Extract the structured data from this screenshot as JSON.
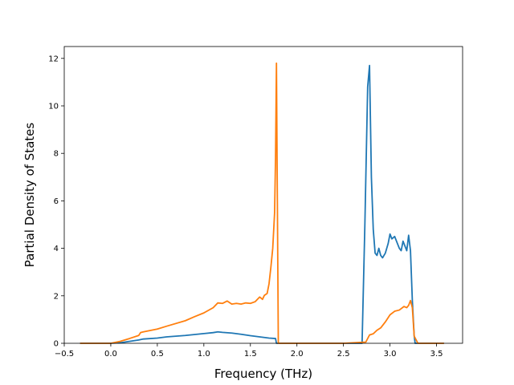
{
  "chart_data": {
    "type": "line",
    "title": "",
    "xlabel": "Frequency (THz)",
    "ylabel": "Partial Density of States",
    "xlim": [
      -0.5,
      3.78
    ],
    "ylim": [
      0,
      12.5
    ],
    "xticks": [
      -0.5,
      0.0,
      0.5,
      1.0,
      1.5,
      2.0,
      2.5,
      3.0,
      3.5
    ],
    "xtick_labels": [
      "−0.5",
      "0.0",
      "0.5",
      "1.0",
      "1.5",
      "2.0",
      "2.5",
      "3.0",
      "3.5"
    ],
    "yticks": [
      0,
      2,
      4,
      6,
      8,
      10,
      12
    ],
    "ytick_labels": [
      "0",
      "2",
      "4",
      "6",
      "8",
      "10",
      "12"
    ],
    "grid": false,
    "legend": "none",
    "series": [
      {
        "color": "#1f77b4",
        "x": [
          -0.33,
          0.0,
          0.1,
          0.2,
          0.3,
          0.35,
          0.5,
          0.6,
          0.8,
          1.0,
          1.1,
          1.15,
          1.2,
          1.3,
          1.4,
          1.5,
          1.6,
          1.7,
          1.77,
          1.78,
          1.85,
          2.0,
          2.5,
          2.7,
          2.73,
          2.76,
          2.78,
          2.8,
          2.82,
          2.84,
          2.86,
          2.88,
          2.9,
          2.92,
          2.95,
          2.98,
          3.0,
          3.02,
          3.05,
          3.08,
          3.1,
          3.12,
          3.14,
          3.16,
          3.18,
          3.2,
          3.22,
          3.24,
          3.26,
          3.27,
          3.3,
          3.58
        ],
        "y": [
          0,
          0,
          0.02,
          0.08,
          0.14,
          0.18,
          0.22,
          0.27,
          0.33,
          0.41,
          0.45,
          0.48,
          0.46,
          0.43,
          0.38,
          0.32,
          0.27,
          0.22,
          0.2,
          0,
          0,
          0,
          0,
          0,
          5.0,
          10.8,
          11.7,
          7.0,
          4.8,
          3.8,
          3.7,
          4.0,
          3.7,
          3.6,
          3.8,
          4.2,
          4.6,
          4.4,
          4.5,
          4.2,
          4.0,
          3.9,
          4.3,
          4.1,
          3.9,
          4.55,
          3.9,
          1.8,
          0.3,
          0,
          0,
          0
        ]
      },
      {
        "color": "#ff7f0e",
        "x": [
          -0.33,
          0.0,
          0.1,
          0.2,
          0.3,
          0.32,
          0.35,
          0.5,
          0.6,
          0.8,
          0.9,
          1.0,
          1.1,
          1.15,
          1.2,
          1.25,
          1.3,
          1.35,
          1.4,
          1.45,
          1.5,
          1.55,
          1.6,
          1.63,
          1.65,
          1.68,
          1.7,
          1.72,
          1.74,
          1.76,
          1.77,
          1.78,
          1.8,
          2.0,
          2.5,
          2.74,
          2.78,
          2.82,
          2.86,
          2.9,
          2.95,
          3.0,
          3.05,
          3.1,
          3.15,
          3.18,
          3.2,
          3.22,
          3.24,
          3.26,
          3.3,
          3.58
        ],
        "y": [
          0,
          0,
          0.08,
          0.2,
          0.33,
          0.45,
          0.48,
          0.6,
          0.72,
          0.95,
          1.12,
          1.28,
          1.5,
          1.7,
          1.68,
          1.78,
          1.65,
          1.68,
          1.65,
          1.7,
          1.68,
          1.75,
          1.95,
          1.85,
          2.02,
          2.1,
          2.5,
          3.2,
          4.0,
          5.5,
          7.8,
          11.8,
          0,
          0,
          0,
          0.05,
          0.35,
          0.4,
          0.55,
          0.65,
          0.9,
          1.2,
          1.35,
          1.4,
          1.55,
          1.5,
          1.6,
          1.8,
          1.5,
          0.3,
          0,
          0
        ]
      }
    ]
  }
}
